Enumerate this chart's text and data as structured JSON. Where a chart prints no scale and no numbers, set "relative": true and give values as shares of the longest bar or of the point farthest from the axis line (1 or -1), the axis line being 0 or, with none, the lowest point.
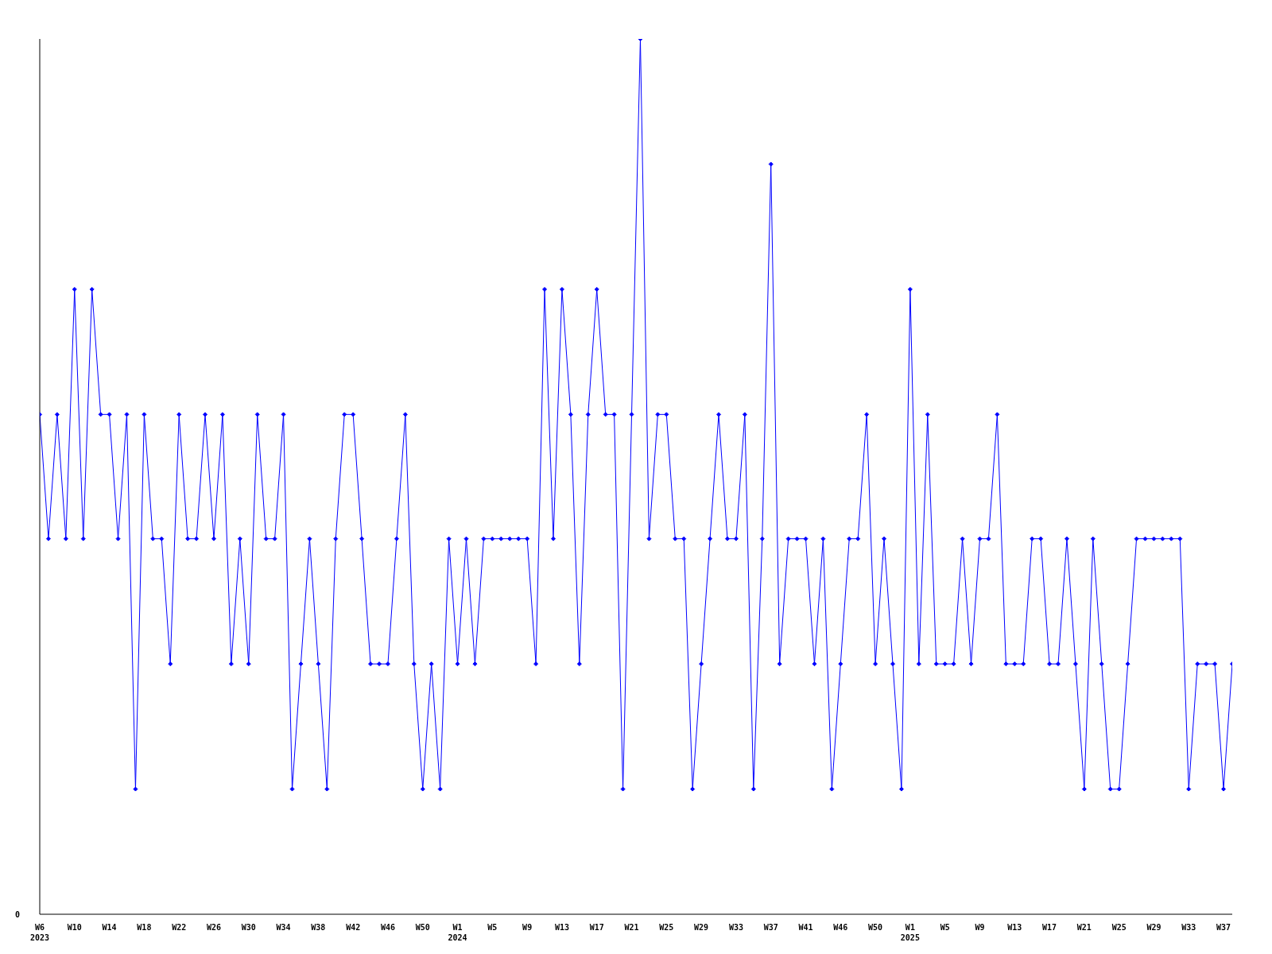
{
  "chart_data": {
    "type": "line",
    "relative": true,
    "annotations": [
      "0"
    ],
    "grid": false,
    "legend": false,
    "marker": "diamond",
    "line_style": "solid",
    "categories": [
      "W6\n2023",
      null,
      null,
      null,
      "W10",
      null,
      null,
      null,
      "W14",
      null,
      null,
      null,
      "W18",
      null,
      null,
      null,
      "W22",
      null,
      null,
      null,
      "W26",
      null,
      null,
      null,
      "W30",
      null,
      null,
      null,
      "W34",
      null,
      null,
      null,
      "W38",
      null,
      null,
      null,
      "W42",
      null,
      null,
      null,
      "W46",
      null,
      null,
      null,
      "W50",
      null,
      null,
      null,
      "W1\n2024",
      null,
      null,
      null,
      "W5",
      null,
      null,
      null,
      "W9",
      null,
      null,
      null,
      "W13",
      null,
      null,
      null,
      "W17",
      null,
      null,
      null,
      "W21",
      null,
      null,
      null,
      "W25",
      null,
      null,
      null,
      "W29",
      null,
      null,
      null,
      "W33",
      null,
      null,
      null,
      "W37",
      null,
      null,
      null,
      "W41",
      null,
      null,
      null,
      "W46",
      null,
      null,
      null,
      "W50",
      null,
      null,
      null,
      "W1\n2025",
      null,
      null,
      null,
      "W5",
      null,
      null,
      null,
      "W9",
      null,
      null,
      null,
      "W13",
      null,
      null,
      null,
      "W17",
      null,
      null,
      null,
      "W21",
      null,
      null,
      null,
      "W25",
      null,
      null,
      null,
      "W29",
      null,
      null,
      null,
      "W33",
      null,
      null,
      null,
      "W37",
      null
    ],
    "series": [
      {
        "color": "#0000ff",
        "values": [
          0.571,
          0.429,
          0.571,
          0.429,
          0.714,
          0.429,
          0.714,
          0.571,
          0.571,
          0.429,
          0.571,
          0.143,
          0.571,
          0.429,
          0.429,
          0.286,
          0.571,
          0.429,
          0.429,
          0.571,
          0.429,
          0.571,
          0.286,
          0.429,
          0.286,
          0.571,
          0.429,
          0.429,
          0.571,
          0.143,
          0.286,
          0.429,
          0.286,
          0.143,
          0.429,
          0.571,
          0.571,
          0.429,
          0.286,
          0.286,
          0.286,
          0.429,
          0.571,
          0.286,
          0.143,
          0.286,
          0.143,
          0.429,
          0.286,
          0.429,
          0.286,
          0.429,
          0.429,
          0.429,
          0.429,
          0.429,
          0.429,
          0.286,
          0.714,
          0.429,
          0.714,
          0.571,
          0.286,
          0.571,
          0.714,
          0.571,
          0.571,
          0.143,
          0.571,
          1,
          0.429,
          0.571,
          0.571,
          0.429,
          0.429,
          0.143,
          0.286,
          0.429,
          0.571,
          0.429,
          0.429,
          0.571,
          0.143,
          0.429,
          0.857,
          0.286,
          0.429,
          0.429,
          0.429,
          0.286,
          0.429,
          0.143,
          0.286,
          0.429,
          0.429,
          0.571,
          0.286,
          0.429,
          0.286,
          0.143,
          0.714,
          0.286,
          0.571,
          0.286,
          0.286,
          0.286,
          0.429,
          0.286,
          0.429,
          0.429,
          0.571,
          0.286,
          0.286,
          0.286,
          0.429,
          0.429,
          0.286,
          0.286,
          0.429,
          0.286,
          0.143,
          0.429,
          0.286,
          0.143,
          0.143,
          0.286,
          0.429,
          0.429,
          0.429,
          0.429,
          0.429,
          0.429,
          0.143,
          0.286,
          0.286,
          0.286,
          0.143,
          0.286
        ]
      }
    ]
  }
}
